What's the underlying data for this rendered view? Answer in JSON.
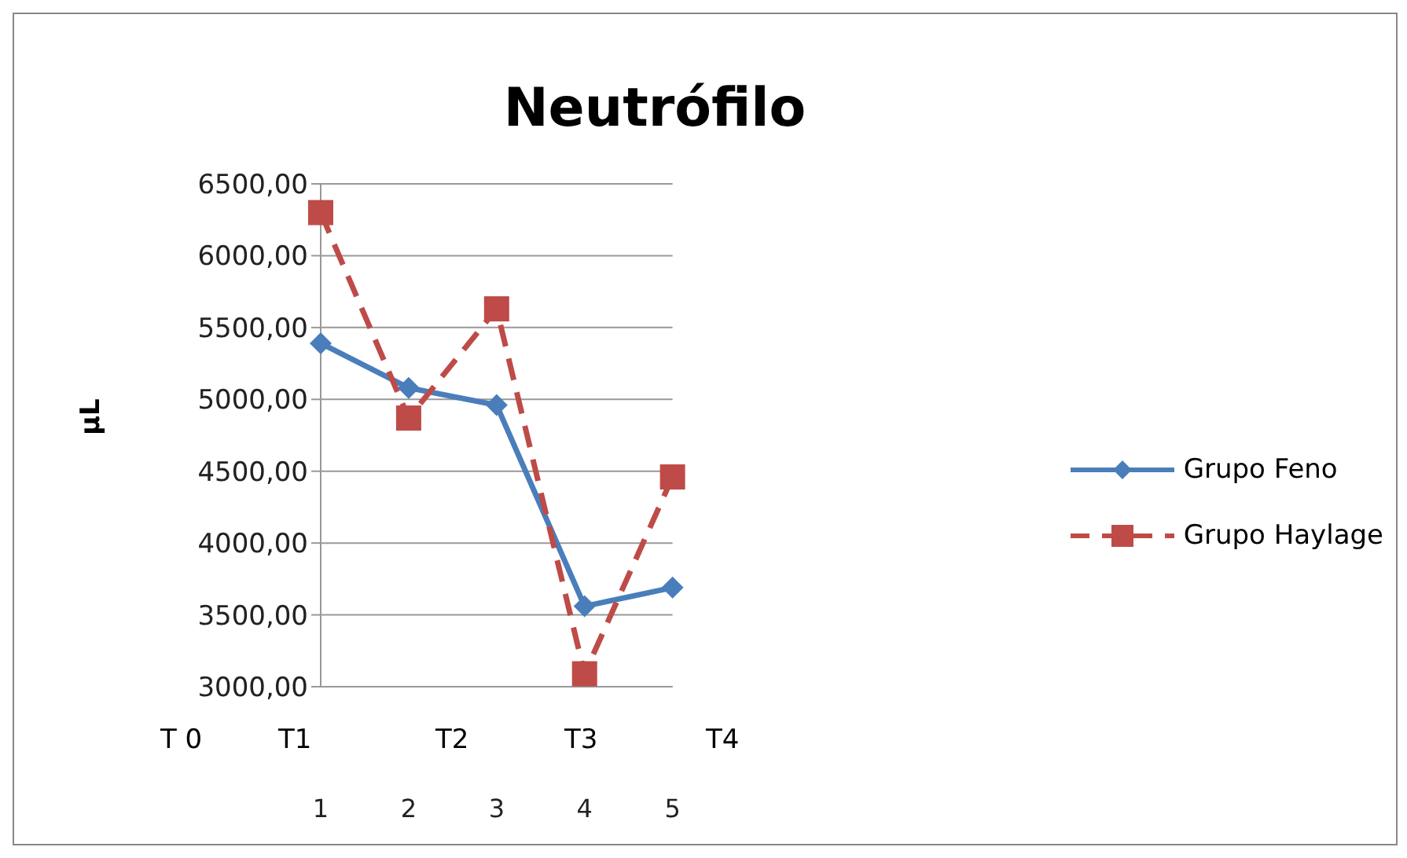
{
  "chart_data": {
    "type": "line",
    "title": "Neutrófilo",
    "ylabel": "µL",
    "categories": [
      "1",
      "2",
      "3",
      "4",
      "5"
    ],
    "series": [
      {
        "name": "Grupo Feno",
        "color": "#4a7ebb",
        "marker": "diamond",
        "line_style": "solid",
        "values": [
          5390,
          5080,
          4960,
          3560,
          3690
        ]
      },
      {
        "name": "Grupo Haylage",
        "color": "#be4b48",
        "marker": "square",
        "line_style": "dashed",
        "values": [
          6300,
          4870,
          5630,
          3090,
          4460
        ]
      }
    ],
    "ylim": [
      3000,
      6500
    ],
    "yticks": [
      {
        "value": 3000,
        "label": "3000,00"
      },
      {
        "value": 3500,
        "label": "3500,00"
      },
      {
        "value": 4000,
        "label": "4000,00"
      },
      {
        "value": 4500,
        "label": "4500,00"
      },
      {
        "value": 5000,
        "label": "5000,00"
      },
      {
        "value": 5500,
        "label": "5500,00"
      },
      {
        "value": 6000,
        "label": "6000,00"
      },
      {
        "value": 6500,
        "label": "6500,00"
      }
    ],
    "grid": "y",
    "legend": "right",
    "annotations": [
      "T 0",
      "T1",
      "T2",
      "T3",
      "T4"
    ]
  }
}
